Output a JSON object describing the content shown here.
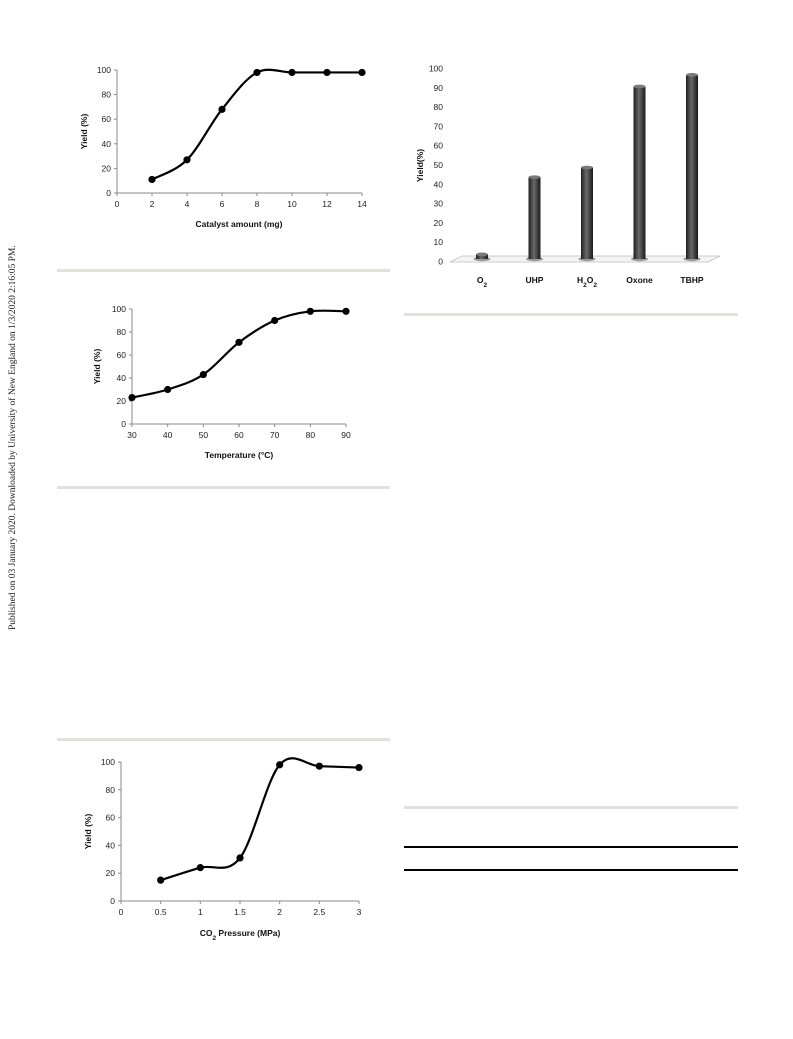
{
  "side_note": "Published on 03 January 2020. Downloaded by University of New England on 1/3/2020 2:16:05 PM.",
  "chart_data": [
    {
      "type": "line",
      "xlabel": "Catalyst amount (mg)",
      "ylabel": "Yield (%)",
      "x": [
        2,
        4,
        6,
        8,
        10,
        12,
        14
      ],
      "y": [
        11,
        27,
        68,
        98,
        98,
        98,
        98
      ],
      "xlim": [
        0,
        14
      ],
      "ylim": [
        0,
        100
      ],
      "xticks": [
        0,
        2,
        4,
        6,
        8,
        10,
        12,
        14
      ],
      "yticks": [
        0,
        20,
        40,
        60,
        80,
        100
      ]
    },
    {
      "type": "bar",
      "xlabel": "",
      "ylabel": "Yield(%)",
      "categories": [
        "O2",
        "UHP",
        "H2O2",
        "Oxone",
        "TBHP"
      ],
      "category_labels": [
        {
          "main": "O",
          "sub": "2",
          "tail": ""
        },
        {
          "main": "UHP",
          "sub": "",
          "tail": ""
        },
        {
          "main": "H",
          "sub": "2",
          "tail": "O",
          "sub2": "2"
        },
        {
          "main": "Oxone",
          "sub": "",
          "tail": ""
        },
        {
          "main": "TBHP",
          "sub": "",
          "tail": ""
        }
      ],
      "values": [
        5,
        45,
        50,
        92,
        98
      ],
      "ylim": [
        0,
        100
      ],
      "yticks": [
        0,
        10,
        20,
        30,
        40,
        50,
        60,
        70,
        80,
        90,
        100
      ],
      "bar_color": "#3a3a3a"
    },
    {
      "type": "line",
      "xlabel": "Temperature (°C)",
      "ylabel": "Yield (%)",
      "x": [
        30,
        40,
        50,
        60,
        70,
        80,
        90
      ],
      "y": [
        23,
        30,
        43,
        71,
        90,
        98,
        98
      ],
      "xlim": [
        30,
        90
      ],
      "ylim": [
        0,
        100
      ],
      "xticks": [
        30,
        40,
        50,
        60,
        70,
        80,
        90
      ],
      "yticks": [
        0,
        20,
        40,
        60,
        80,
        100
      ]
    },
    {
      "type": "line",
      "xlabel": "CO2 Pressure (MPa)",
      "ylabel": "Yield (%)",
      "x": [
        0.5,
        1,
        1.5,
        2,
        2.5,
        3
      ],
      "y": [
        15,
        24,
        31,
        98,
        97,
        96
      ],
      "xlim": [
        0,
        3
      ],
      "ylim": [
        0,
        100
      ],
      "xticks": [
        0,
        0.5,
        1,
        1.5,
        2,
        2.5,
        3
      ],
      "ytick_labels": [
        "0",
        "20",
        "40",
        "60",
        "80",
        "100"
      ],
      "xtick_labels": [
        "0",
        "0.5",
        "1",
        "1.5",
        "2",
        "2.5",
        "3"
      ],
      "yticks": [
        0,
        20,
        40,
        60,
        80,
        100
      ]
    }
  ]
}
